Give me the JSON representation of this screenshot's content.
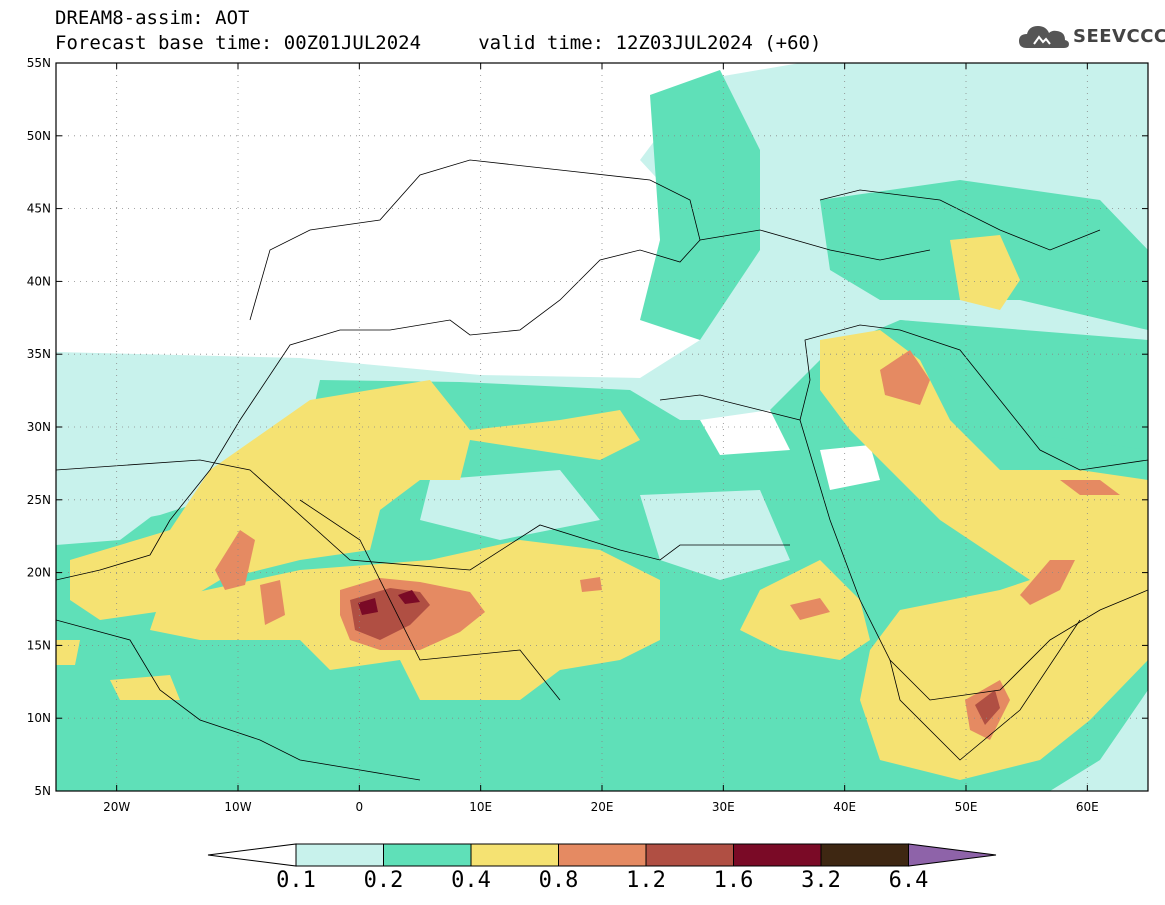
{
  "header": {
    "line1": "DREAM8-assim: AOT",
    "line2": "Forecast base time: 00Z01JUL2024     valid time: 12Z03JUL2024 (+60)"
  },
  "brand": {
    "name": "SEEVCCC",
    "icon": "cloud-icon"
  },
  "map": {
    "lon_range": [
      -25,
      65
    ],
    "lat_range": [
      5,
      55
    ],
    "lat_ticks": [
      "55N",
      "50N",
      "45N",
      "40N",
      "35N",
      "30N",
      "25N",
      "20N",
      "15N",
      "10N",
      "5N"
    ],
    "lon_ticks": [
      "20W",
      "10W",
      "0",
      "10E",
      "20E",
      "30E",
      "40E",
      "50E",
      "60E"
    ],
    "grid": "dotted"
  },
  "colorbar": {
    "levels": [
      "0.1",
      "0.2",
      "0.4",
      "0.8",
      "1.2",
      "1.6",
      "3.2",
      "6.4"
    ],
    "colors": [
      "#c8f2ec",
      "#5fe0b8",
      "#f5e272",
      "#e58a62",
      "#b04f43",
      "#7a0a26",
      "#3e2712",
      "#8e63a9"
    ],
    "below_color": "#ffffff"
  }
}
